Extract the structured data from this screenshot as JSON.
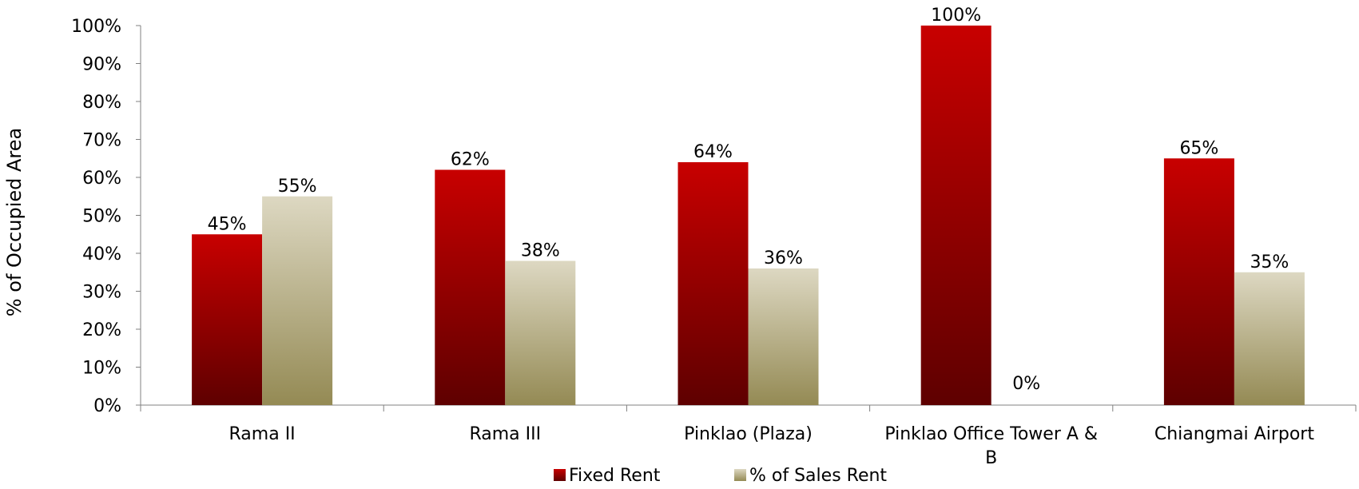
{
  "chart_data": {
    "type": "bar",
    "categories": [
      "Rama II",
      "Rama III",
      "Pinklao (Plaza)",
      "Pinklao Office Tower A & B",
      "Chiangmai Airport"
    ],
    "series": [
      {
        "name": "Fixed Rent",
        "values": [
          45,
          62,
          64,
          100,
          65
        ],
        "labels": [
          "45%",
          "62%",
          "64%",
          "100%",
          "65%"
        ]
      },
      {
        "name": "% of Sales Rent",
        "values": [
          55,
          38,
          36,
          0,
          35
        ],
        "labels": [
          "55%",
          "38%",
          "36%",
          "0%",
          "35%"
        ]
      }
    ],
    "ylabel": "% of Occupied Area",
    "xlabel": "",
    "ylim": [
      0,
      100
    ],
    "yticks": [
      "0%",
      "10%",
      "20%",
      "30%",
      "40%",
      "50%",
      "60%",
      "70%",
      "80%",
      "90%",
      "100%"
    ],
    "legend_position": "bottom",
    "grid": false,
    "colors": {
      "fixed_top": "#c80000",
      "fixed_bottom": "#5e0000",
      "sales_top": "#ddd8c2",
      "sales_bottom": "#948a54",
      "axis": "#808080"
    }
  }
}
